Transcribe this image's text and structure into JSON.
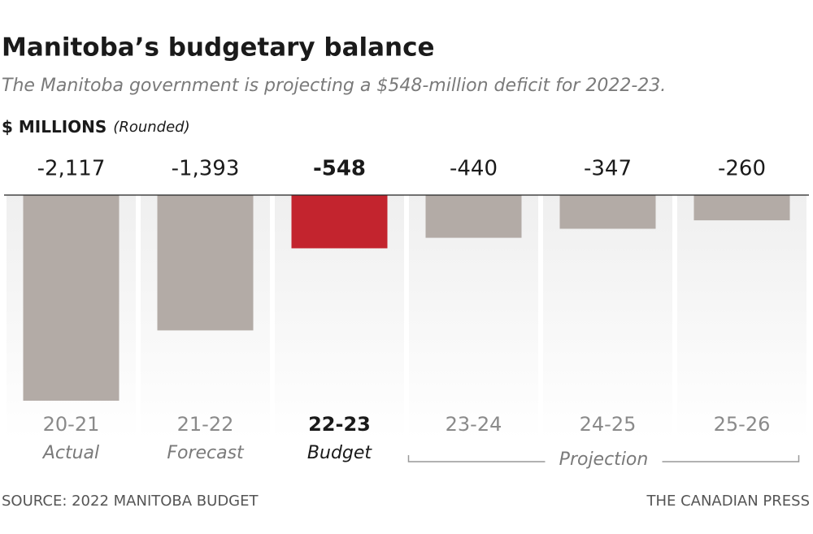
{
  "chart_data": {
    "type": "bar",
    "title": "Manitoba’s budgetary balance",
    "subtitle": "The Manitoba government is projecting a $548-million deficit for 2022-23.",
    "unit_label": "$ MILLIONS",
    "unit_note": "(Rounded)",
    "categories": [
      "20-21",
      "21-22",
      "22-23",
      "23-24",
      "24-25",
      "25-26"
    ],
    "category_notes": [
      "Actual",
      "Forecast",
      "Budget"
    ],
    "group_label": "Projection",
    "values": [
      -2117,
      -1393,
      -548,
      -440,
      -347,
      -260
    ],
    "value_labels": [
      "-2,117",
      "-1,393",
      "-548",
      "-440",
      "-347",
      "-260"
    ],
    "color": "#b3aba6",
    "highlight": 2,
    "highlight_color": "#c3242e",
    "source": "SOURCE: 2022 MANITOBA BUDGET",
    "credit": "THE CANADIAN PRESS"
  }
}
